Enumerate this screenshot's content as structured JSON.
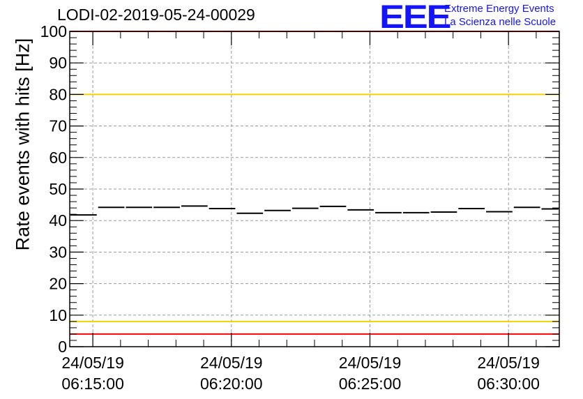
{
  "header": {
    "title": "LODI-02-2019-05-24-00029",
    "logo_mark": "EEE",
    "logo_line1": "Extreme Energy Events",
    "logo_line2": "La Scienza nelle Scuole"
  },
  "colors": {
    "frame": "#000000",
    "grid": "#9a9a9a",
    "limit_red": "#ff0000",
    "limit_yellow": "#f5d000",
    "logo": "#1414ff"
  },
  "chart_data": {
    "type": "scatter",
    "title": "LODI-02-2019-05-24-00029",
    "xlabel": "",
    "ylabel": "Rate events with hits [Hz]",
    "ylim": [
      0,
      100
    ],
    "y_ticks": [
      0,
      10,
      20,
      30,
      40,
      50,
      60,
      70,
      80,
      90,
      100
    ],
    "x_ticks": [
      {
        "date": "24/05/19",
        "time": "06:15:00"
      },
      {
        "date": "24/05/19",
        "time": "06:20:00"
      },
      {
        "date": "24/05/19",
        "time": "06:25:00"
      },
      {
        "date": "24/05/19",
        "time": "06:30:00"
      }
    ],
    "xlim": [
      "06:14:10",
      "06:31:50"
    ],
    "grid": true,
    "reference_lines": [
      {
        "value": 100,
        "color": "red"
      },
      {
        "value": 80,
        "color": "yellow"
      },
      {
        "value": 8,
        "color": "yellow"
      },
      {
        "value": 4,
        "color": "red"
      }
    ],
    "series": [
      {
        "x": [
          "06:14:10",
          "06:15:10",
          "06:16:10",
          "06:17:10",
          "06:18:10",
          "06:19:10",
          "06:20:10",
          "06:21:10",
          "06:22:10",
          "06:23:10",
          "06:24:10",
          "06:25:10",
          "06:26:10",
          "06:27:10",
          "06:28:10",
          "06:29:10",
          "06:30:10",
          "06:31:10"
        ],
        "x_end": [
          "06:15:10",
          "06:16:10",
          "06:17:10",
          "06:18:10",
          "06:19:10",
          "06:20:10",
          "06:21:10",
          "06:22:10",
          "06:23:10",
          "06:24:10",
          "06:25:10",
          "06:26:10",
          "06:27:10",
          "06:28:10",
          "06:29:10",
          "06:30:10",
          "06:31:10",
          "06:31:50"
        ],
        "values": [
          41.8,
          44.2,
          44.2,
          44.2,
          44.6,
          43.8,
          42.3,
          43.2,
          43.9,
          44.5,
          43.4,
          42.5,
          42.5,
          42.7,
          43.8,
          42.8,
          44.2,
          43.7
        ]
      }
    ]
  }
}
